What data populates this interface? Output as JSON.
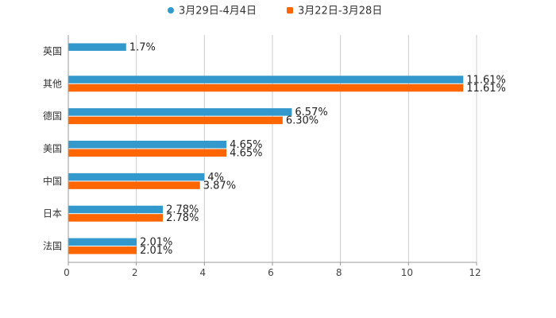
{
  "chart_data": {
    "type": "bar",
    "orientation": "horizontal",
    "categories": [
      "英国",
      "其他",
      "德国",
      "美国",
      "中国",
      "日本",
      "法国"
    ],
    "series": [
      {
        "name": "3月29日-4月4日",
        "color": "#3399CC",
        "values": [
          1.7,
          11.61,
          6.57,
          4.65,
          4,
          2.78,
          2.01
        ],
        "labels": [
          "1.7%",
          "11.61%",
          "6.57%",
          "4.65%",
          "4%",
          "2.78%",
          "2.01%"
        ]
      },
      {
        "name": "3月22日-3月28日",
        "color": "#FF6600",
        "values": [
          null,
          11.61,
          6.3,
          4.65,
          3.87,
          2.78,
          2.01
        ],
        "labels": [
          "",
          "11.61%",
          "6.30%",
          "4.65%",
          "3.87%",
          "2.78%",
          "2.01%"
        ]
      }
    ],
    "xlim": [
      0,
      12
    ],
    "xticks": [
      0,
      2,
      4,
      6,
      8,
      10,
      12
    ],
    "xtick_labels": [
      "0",
      "2",
      "4",
      "6",
      "8",
      "10",
      "12"
    ],
    "grid": true,
    "legend_position": "top-center",
    "title": "",
    "xlabel": "",
    "ylabel": ""
  }
}
